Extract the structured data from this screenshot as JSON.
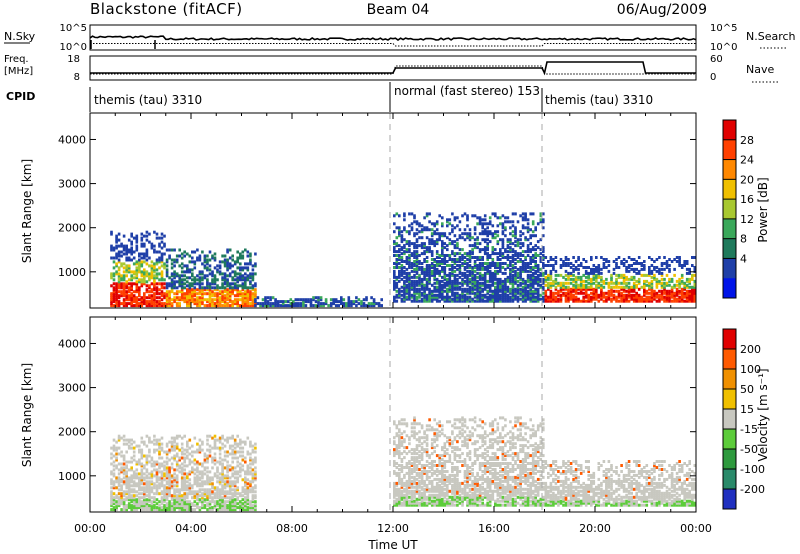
{
  "header": {
    "radar_title": "Blackstone (fitACF)",
    "beam": "Beam 04",
    "date": "06/Aug/2009"
  },
  "params": {
    "nsky_label": "N.Sky",
    "nsearch_label": "N.Search",
    "freq_label_1": "Freq.",
    "freq_label_2": "[MHz]",
    "nave_label": "Nave",
    "cpid_label": "CPID",
    "nsky_ticks": [
      "10^5",
      "10^0"
    ],
    "nsearch_ticks": [
      "10^5",
      "10^0"
    ],
    "freq_ticks": [
      "18",
      "8"
    ],
    "nave_ticks": [
      "60",
      "0"
    ]
  },
  "cpid_segments": [
    {
      "label": "themis (tau) 3310",
      "start_hour": 0
    },
    {
      "label": "normal (fast stereo) 153",
      "start_hour": 12
    },
    {
      "label": "themis (tau) 3310",
      "start_hour": 18
    }
  ],
  "chart_data": [
    {
      "type": "heatmap",
      "title": "",
      "xlabel": "",
      "ylabel": "Slant Range [km]",
      "xlim": [
        0,
        24
      ],
      "ylim": [
        180,
        4600
      ],
      "yticks": [
        1000,
        2000,
        3000,
        4000
      ],
      "colorbar": {
        "label": "Power [dB]",
        "ticks": [
          28,
          24,
          20,
          16,
          12,
          8,
          4
        ],
        "colors": [
          "#0014e8",
          "#1f3fa8",
          "#1f7a5c",
          "#3aa85a",
          "#a8c830",
          "#f0c000",
          "#ff8800",
          "#ff4000",
          "#e00000"
        ]
      },
      "echo_regions": [
        {
          "t_start": 0.8,
          "t_end": 3.0,
          "range_min": 200,
          "range_max": 1900,
          "level": "high"
        },
        {
          "t_start": 3.0,
          "t_end": 6.5,
          "range_min": 200,
          "range_max": 1500,
          "level": "medium"
        },
        {
          "t_start": 6.5,
          "t_end": 11.5,
          "range_min": 200,
          "range_max": 400,
          "level": "low"
        },
        {
          "t_start": 12.0,
          "t_end": 18.0,
          "range_min": 300,
          "range_max": 2300,
          "level": "low"
        },
        {
          "t_start": 18.0,
          "t_end": 24.0,
          "range_min": 300,
          "range_max": 1300,
          "level": "high"
        }
      ]
    },
    {
      "type": "heatmap",
      "title": "",
      "xlabel": "Time UT",
      "ylabel": "Slant Range [km]",
      "xlim": [
        0,
        24
      ],
      "ylim": [
        180,
        4600
      ],
      "xticks": [
        "00:00",
        "04:00",
        "08:00",
        "12:00",
        "16:00",
        "20:00",
        "00:00"
      ],
      "yticks": [
        1000,
        2000,
        3000,
        4000
      ],
      "colorbar": {
        "label": "Velocity [m s⁻¹]",
        "ticks": [
          200,
          100,
          50,
          15,
          -15,
          -50,
          -100,
          -200
        ],
        "colors": [
          "#2030c0",
          "#2a8a6a",
          "#2e9a3e",
          "#5ccc3a",
          "#c8c8c0",
          "#f0c000",
          "#f09000",
          "#ff5a00",
          "#e00000"
        ]
      },
      "echo_regions": [
        {
          "t_start": 0.8,
          "t_end": 6.5,
          "range_min": 200,
          "range_max": 1900,
          "level": "mixed"
        },
        {
          "t_start": 12.0,
          "t_end": 18.0,
          "range_min": 300,
          "range_max": 2300,
          "level": "gray"
        },
        {
          "t_start": 18.0,
          "t_end": 24.0,
          "range_min": 300,
          "range_max": 1300,
          "level": "gray"
        }
      ]
    }
  ]
}
